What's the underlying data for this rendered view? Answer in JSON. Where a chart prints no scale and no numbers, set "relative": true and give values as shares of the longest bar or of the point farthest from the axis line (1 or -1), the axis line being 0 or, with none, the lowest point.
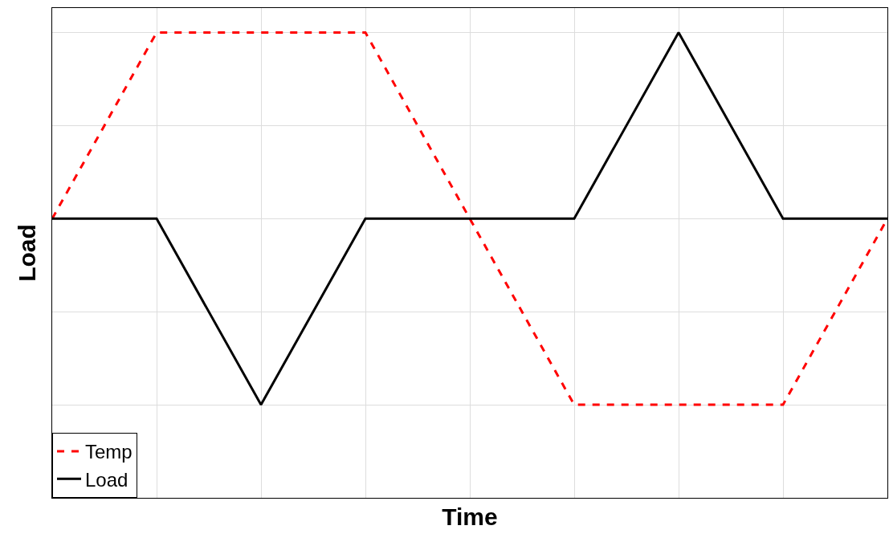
{
  "chart_data": {
    "type": "line",
    "xlabel": "Time",
    "ylabel": "Load",
    "relative": true,
    "grid": true,
    "legend": "bottom left",
    "marker": "none",
    "categories": [
      null,
      null,
      null,
      null,
      null,
      null,
      null,
      null,
      null
    ],
    "series": [
      {
        "name": "Temp",
        "color": "#ff0000",
        "line_style": "dashed",
        "values": [
          0.6,
          1,
          1,
          1,
          0.6,
          0.2,
          0.2,
          0.2,
          0.6
        ]
      },
      {
        "name": "Load",
        "color": "#000000",
        "line_style": "solid",
        "values": [
          0.6,
          0.6,
          0.2,
          0.6,
          0.6,
          0.6,
          1,
          0.6,
          0.6
        ]
      }
    ]
  }
}
